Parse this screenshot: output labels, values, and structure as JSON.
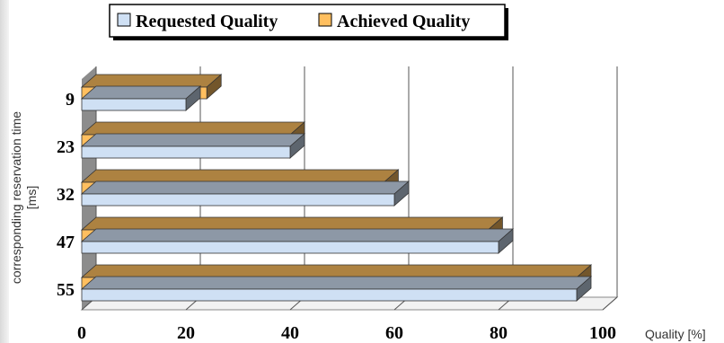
{
  "chart_data": {
    "type": "bar",
    "orientation": "horizontal",
    "style": "3d",
    "categories": [
      "9",
      "23",
      "32",
      "47",
      "55"
    ],
    "series": [
      {
        "name": "Requested Quality",
        "values": [
          20,
          40,
          60,
          80,
          95
        ],
        "color": "#cfe0f4"
      },
      {
        "name": "Achieved Quality",
        "values": [
          24,
          40,
          58,
          78,
          95
        ],
        "color": "#ffbf5f"
      }
    ],
    "xlabel": "Quality [%]",
    "ylabel": [
      "corresponding reservation  time",
      "[ms]"
    ],
    "xlim": [
      0,
      100
    ],
    "x_ticks": [
      "0",
      "20",
      "40",
      "60",
      "80",
      "100"
    ],
    "grid": "vertical",
    "legend_position": "top-center"
  }
}
